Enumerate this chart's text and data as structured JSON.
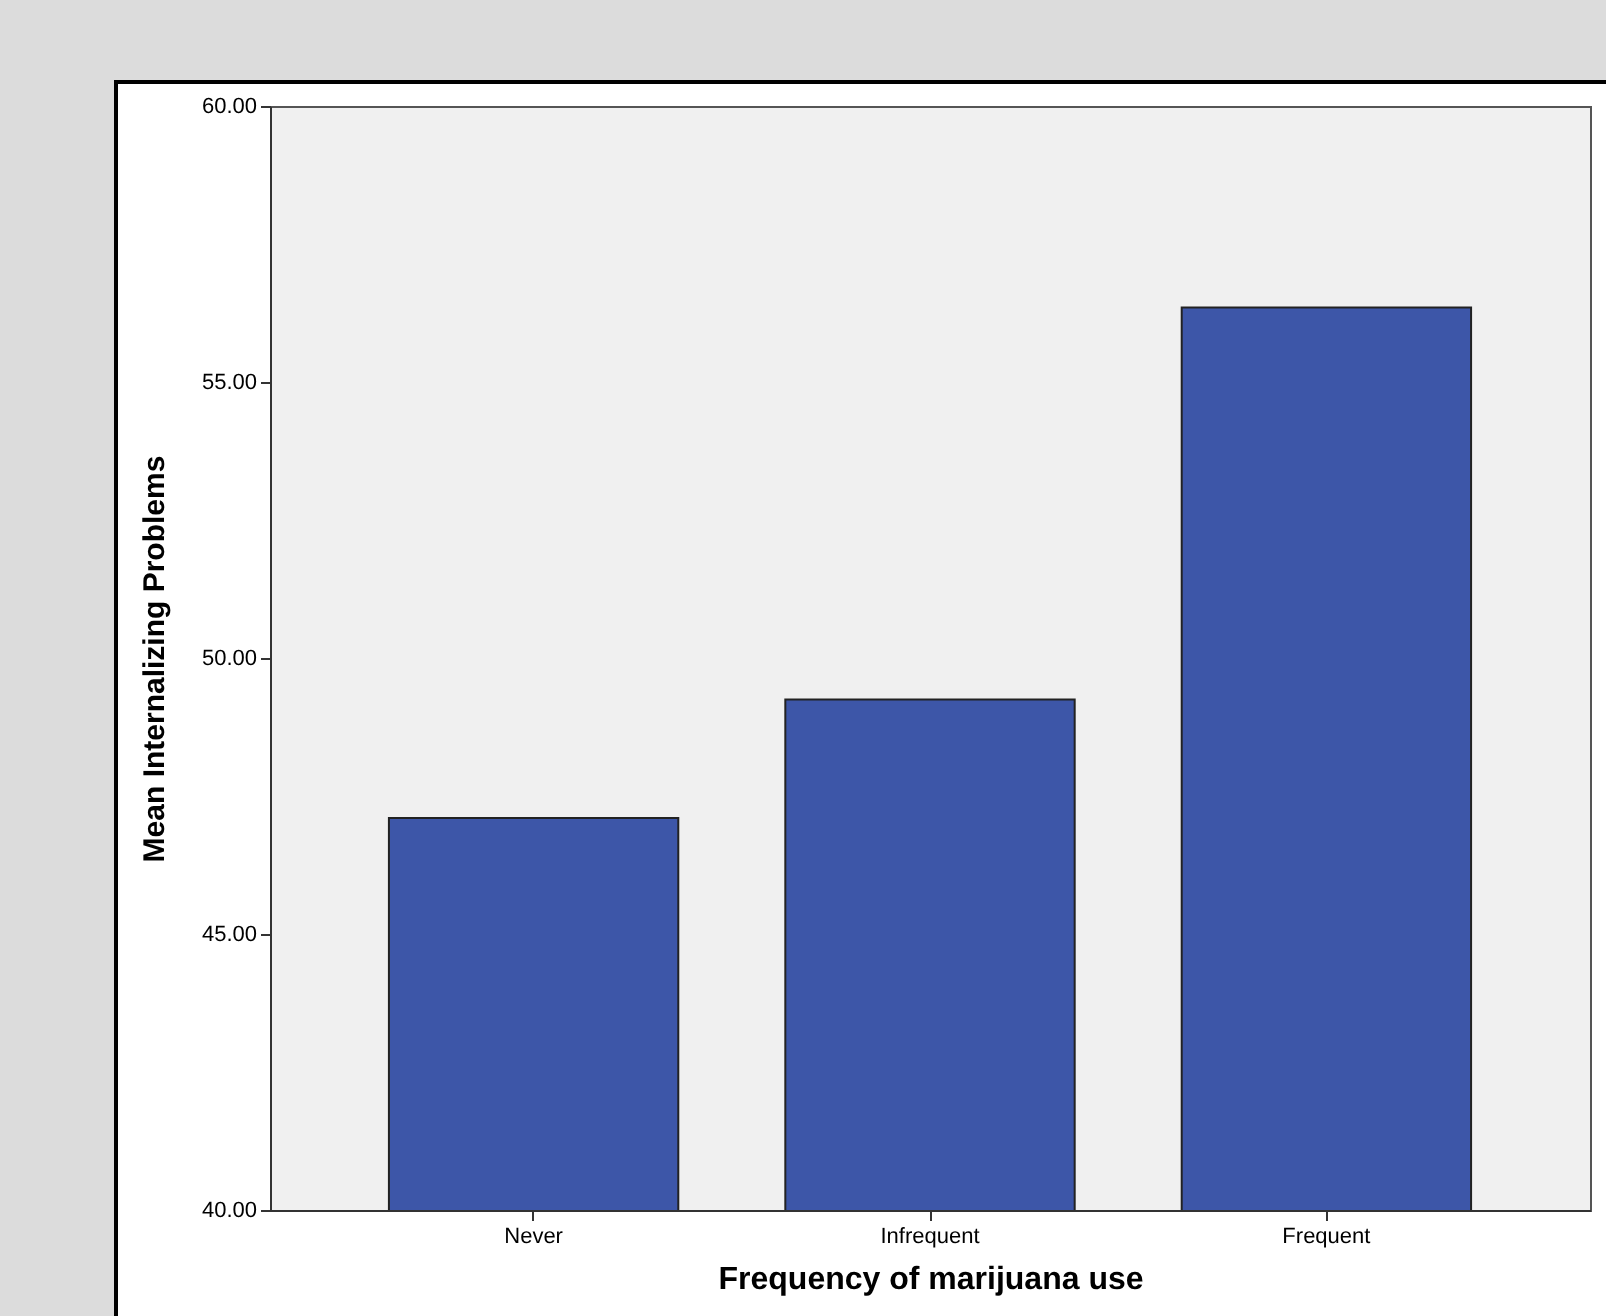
{
  "chart_data": {
    "type": "bar",
    "xlabel": "Frequency of marijuana use",
    "ylabel": "Mean Internalizing Problems",
    "categories": [
      "Never",
      "Infrequent",
      "Frequent"
    ],
    "values": [
      47.1,
      49.25,
      56.35
    ],
    "color": "#3d56a8",
    "ylim": [
      40,
      60
    ],
    "yticks": [
      {
        "value": 40,
        "label": "40.00"
      },
      {
        "value": 45,
        "label": "45.00"
      },
      {
        "value": 50,
        "label": "50.00"
      },
      {
        "value": 55,
        "label": "55.00"
      },
      {
        "value": 60,
        "label": "60.00"
      }
    ],
    "grid": false
  }
}
